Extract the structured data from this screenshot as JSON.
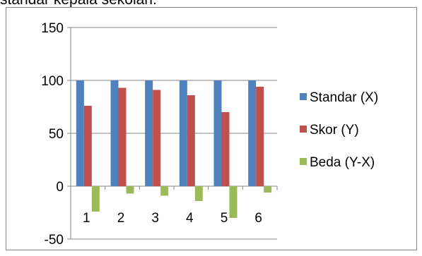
{
  "header": {
    "cropped_text": "standar kepala sekolah."
  },
  "chart_data": {
    "type": "bar",
    "categories": [
      "1",
      "2",
      "3",
      "4",
      "5",
      "6"
    ],
    "series": [
      {
        "name": "Standar (X)",
        "color": "#4F81BD",
        "values": [
          100,
          100,
          100,
          100,
          100,
          100
        ]
      },
      {
        "name": "Skor (Y)",
        "color": "#C0504D",
        "values": [
          76,
          93,
          91,
          86,
          70,
          94
        ]
      },
      {
        "name": "Beda (Y-X)",
        "color": "#9BBB59",
        "values": [
          -24,
          -7,
          -9,
          -14,
          -30,
          -6
        ]
      }
    ],
    "ylim": [
      -50,
      150
    ],
    "yticks": [
      -50,
      0,
      50,
      100,
      150
    ],
    "grid": true,
    "legend": "right",
    "xlabel": "",
    "ylabel": "",
    "title": ""
  }
}
